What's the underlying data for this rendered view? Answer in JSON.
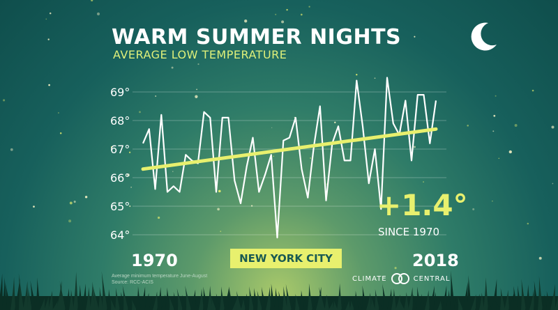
{
  "header": {
    "title": "WARM SUMMER NIGHTS",
    "subtitle": "AVERAGE LOW TEMPERATURE"
  },
  "labels": {
    "start_year": "1970",
    "end_year": "2018",
    "city": "NEW YORK CITY",
    "change_value": "+1.4°",
    "change_label": "SINCE 1970"
  },
  "footnote": {
    "line1": "Average minimum temperature June-August",
    "line2": "Source: RCC-ACIS"
  },
  "logo": {
    "left": "CLIMATE",
    "right": "CENTRAL"
  },
  "colors": {
    "accent": "#e8f06e",
    "line": "#ffffff",
    "trend": "#e8f06e",
    "grid": "#ffffff"
  },
  "chart_data": {
    "type": "line",
    "x": [
      1970,
      1971,
      1972,
      1973,
      1974,
      1975,
      1976,
      1977,
      1978,
      1979,
      1980,
      1981,
      1982,
      1983,
      1984,
      1985,
      1986,
      1987,
      1988,
      1989,
      1990,
      1991,
      1992,
      1993,
      1994,
      1995,
      1996,
      1997,
      1998,
      1999,
      2000,
      2001,
      2002,
      2003,
      2004,
      2005,
      2006,
      2007,
      2008,
      2009,
      2010,
      2011,
      2012,
      2013,
      2014,
      2015,
      2016,
      2017,
      2018
    ],
    "series": [
      {
        "values": [
          67.2,
          67.7,
          65.6,
          68.2,
          65.5,
          65.7,
          65.5,
          66.8,
          66.6,
          66.5,
          68.3,
          68.1,
          65.5,
          68.1,
          68.1,
          65.9,
          65.1,
          66.4,
          67.4,
          65.5,
          66.1,
          66.8,
          63.9,
          67.3,
          67.4,
          68.1,
          66.3,
          65.3,
          67.1,
          68.5,
          65.2,
          67.2,
          67.8,
          66.6,
          66.6,
          69.4,
          67.8,
          65.8,
          67.0,
          64.9,
          69.5,
          67.9,
          67.5,
          68.7,
          66.6,
          68.9,
          68.9,
          67.2,
          68.7
        ]
      }
    ],
    "trend": {
      "start": [
        1970,
        66.3
      ],
      "end": [
        2018,
        67.7
      ]
    },
    "yticks": [
      "64°",
      "65°",
      "66°",
      "67°",
      "68°",
      "69°"
    ],
    "ylim": [
      63.8,
      69.6
    ],
    "xlim": [
      1970,
      2018
    ],
    "grid": true,
    "xlabel": "",
    "ylabel": ""
  }
}
